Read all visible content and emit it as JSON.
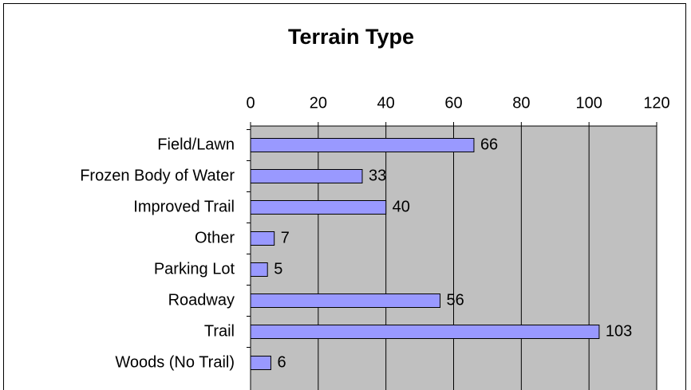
{
  "chart_data": {
    "type": "bar",
    "orientation": "horizontal",
    "title": "Terrain Type",
    "categories": [
      "Field/Lawn",
      "Frozen Body of Water",
      "Improved Trail",
      "Other",
      "Parking Lot",
      "Roadway",
      "Trail",
      "Woods (No Trail)"
    ],
    "values": [
      66,
      33,
      40,
      7,
      5,
      56,
      103,
      6
    ],
    "color": "#9999ff",
    "xlim": [
      0,
      120
    ],
    "xticks": [
      0,
      20,
      40,
      60,
      80,
      100,
      120
    ],
    "grid": true
  }
}
